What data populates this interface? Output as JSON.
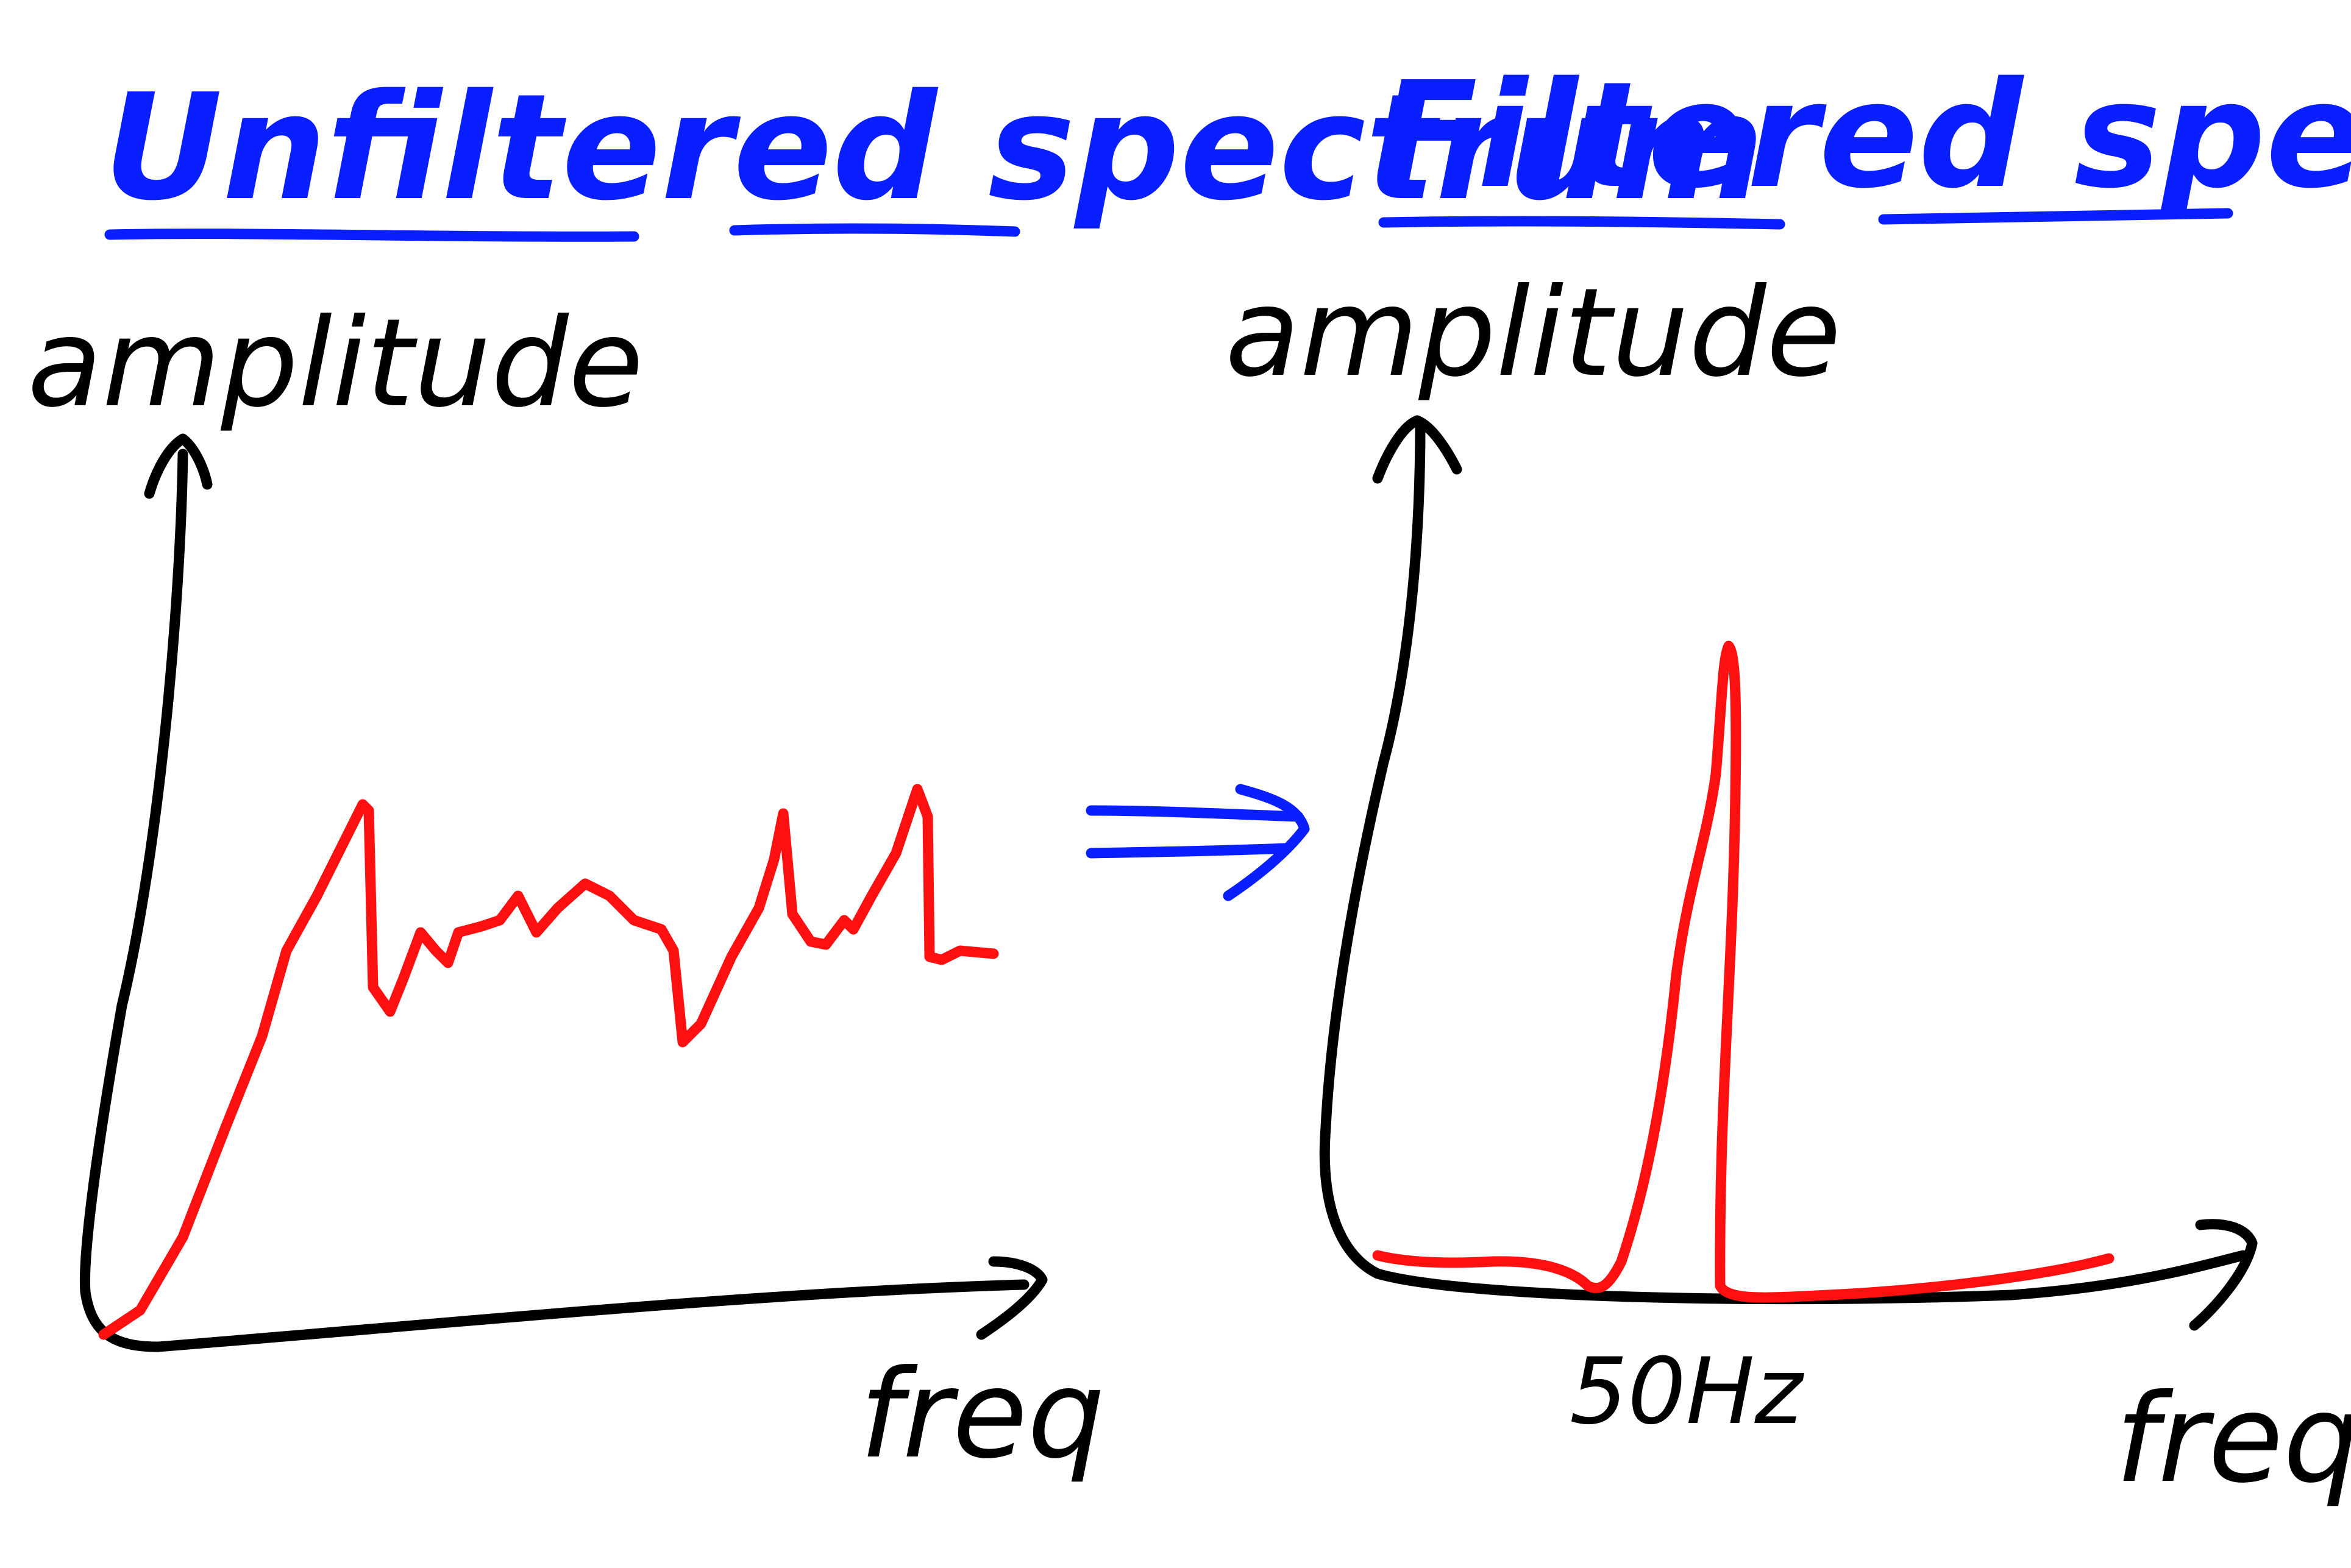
{
  "panels": {
    "unfiltered": {
      "title": "Unfiltered spectrum",
      "ylabel": "amplitude",
      "xlabel": "freq"
    },
    "filtered": {
      "title": "Filtered spectrum",
      "ylabel": "amplitude",
      "xlabel": "freq",
      "peak_label": "50Hz"
    }
  },
  "colors": {
    "title": "#0a1fff",
    "arrow": "#0a1fff",
    "axes": "#000000",
    "spectrum": "#ff1010"
  },
  "icons": {
    "transition_arrow": "double-arrow-right-icon"
  }
}
